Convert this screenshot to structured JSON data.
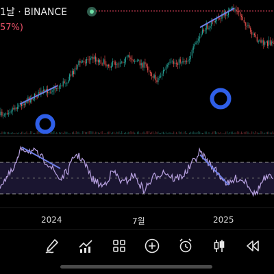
{
  "header": {
    "title": "1날 · BINANCE",
    "change": "57%)"
  },
  "x_axis_labels": [
    "2024",
    "7월",
    "2025"
  ],
  "toolbar": {
    "icons": [
      "draw-icon",
      "indicators-icon",
      "templates-icon",
      "add-icon",
      "alert-icon",
      "chart-type-icon",
      "replay-icon"
    ]
  },
  "colors": {
    "background": "#000000",
    "up": "#26a69a",
    "down": "#ef5350",
    "rsi_line": "#b39ddb",
    "trendline": "#6f7fe6",
    "circle": "#2f5fe8",
    "dashed_ref": "#e9435f"
  }
}
